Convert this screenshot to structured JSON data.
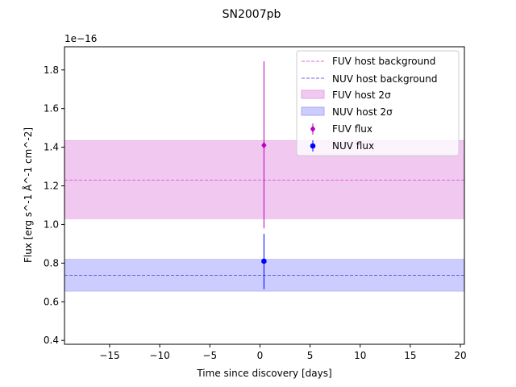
{
  "chart_data": {
    "type": "scatter",
    "title": "SN2007pb",
    "xlabel": "Time since discovery [days]",
    "ylabel": "Flux [erg s^-1 Å^-1 cm^-2]",
    "offset_label": "1e−16",
    "xlim": [
      -19.5,
      20.4
    ],
    "ylim": [
      0.38,
      1.92
    ],
    "x_ticks": [
      -15,
      -10,
      -5,
      0,
      5,
      10,
      15,
      20
    ],
    "x_tick_labels": [
      "−15",
      "−10",
      "−5",
      "0",
      "5",
      "10",
      "15",
      "20"
    ],
    "y_ticks": [
      0.4,
      0.6,
      0.8,
      1.0,
      1.2,
      1.4,
      1.6,
      1.8
    ],
    "y_tick_labels": [
      "0.4",
      "0.6",
      "0.8",
      "1.0",
      "1.2",
      "1.4",
      "1.6",
      "1.8"
    ],
    "grid": false,
    "legend_position": "top-right",
    "colors": {
      "fuv": "#bf00bf",
      "nuv": "#0000ff",
      "fuv_line": "#e066e0",
      "nuv_line": "#6666e6",
      "fuv_band": "#f0c8f0",
      "nuv_band": "#ccccff"
    },
    "host": {
      "fuv": {
        "background": 1.23,
        "low": 1.03,
        "high": 1.435
      },
      "nuv": {
        "background": 0.737,
        "low": 0.655,
        "high": 0.82
      }
    },
    "series": [
      {
        "name": "FUV flux",
        "marker": "diamond",
        "x": [
          0.4
        ],
        "y": [
          1.41
        ],
        "yerr_low": [
          0.98
        ],
        "yerr_high": [
          1.845
        ]
      },
      {
        "name": "NUV flux",
        "marker": "circle",
        "x": [
          0.4
        ],
        "y": [
          0.81
        ],
        "yerr_low": [
          0.665
        ],
        "yerr_high": [
          0.952
        ]
      }
    ],
    "legend": {
      "fuv_bg": "FUV host background",
      "nuv_bg": "NUV host background",
      "fuv_band": "FUV host 2σ",
      "nuv_band": "NUV host 2σ",
      "fuv_flux": "FUV flux",
      "nuv_flux": "NUV flux"
    }
  }
}
